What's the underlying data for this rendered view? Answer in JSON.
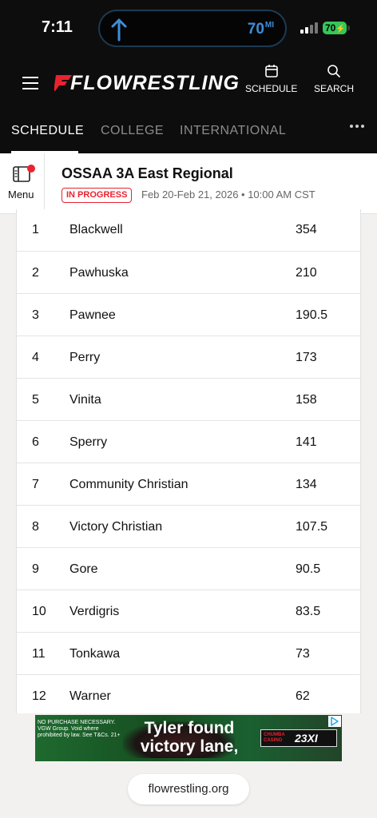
{
  "status_bar": {
    "time": "7:11",
    "live_activity": {
      "distance": "70",
      "unit": "MI",
      "icon": "up-arrow-icon"
    },
    "battery": "70"
  },
  "header": {
    "brand": "FLOWRESTLING",
    "menu_icon": "hamburger-icon",
    "schedule_label": "SCHEDULE",
    "search_label": "SEARCH"
  },
  "nav": {
    "tabs": [
      {
        "label": "SCHEDULE",
        "active": true
      },
      {
        "label": "COLLEGE",
        "active": false
      },
      {
        "label": "INTERNATIONAL",
        "active": false
      }
    ],
    "more_icon": "more-dots-icon"
  },
  "event": {
    "menu_label": "Menu",
    "title": "OSSAA 3A East Regional",
    "status": "IN PROGRESS",
    "meta": "Feb 20-Feb 21, 2026 • 10:00 AM CST"
  },
  "standings": [
    {
      "rank": "1",
      "team": "Blackwell",
      "score": "354"
    },
    {
      "rank": "2",
      "team": "Pawhuska",
      "score": "210"
    },
    {
      "rank": "3",
      "team": "Pawnee",
      "score": "190.5"
    },
    {
      "rank": "4",
      "team": "Perry",
      "score": "173"
    },
    {
      "rank": "5",
      "team": "Vinita",
      "score": "158"
    },
    {
      "rank": "6",
      "team": "Sperry",
      "score": "141"
    },
    {
      "rank": "7",
      "team": "Community Christian",
      "score": "134"
    },
    {
      "rank": "8",
      "team": "Victory Christian",
      "score": "107.5"
    },
    {
      "rank": "9",
      "team": "Gore",
      "score": "90.5"
    },
    {
      "rank": "10",
      "team": "Verdigris",
      "score": "83.5"
    },
    {
      "rank": "11",
      "team": "Tonkawa",
      "score": "73"
    },
    {
      "rank": "12",
      "team": "Warner",
      "score": "62"
    }
  ],
  "ad": {
    "fine_print": "NO PURCHASE NECESSARY. VGW Group. Void where prohibited by law. See T&Cs. 21+",
    "headline_line1": "Tyler found",
    "headline_line2": "victory lane,",
    "brand1": "CHUMBA CASINO",
    "brand2": "23XI"
  },
  "browser": {
    "url": "flowrestling.org"
  },
  "colors": {
    "brand_red": "#e8232f",
    "header_bg": "#0d0d0d",
    "accent_blue": "#3e8ed8",
    "battery_green": "#34c759"
  }
}
